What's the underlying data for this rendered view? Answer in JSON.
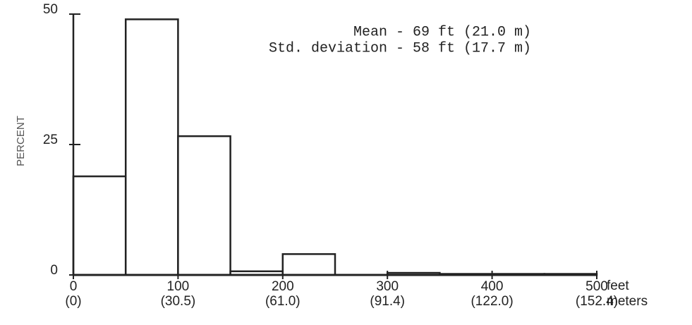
{
  "chart_data": {
    "type": "histogram",
    "bins": [
      0,
      50,
      100,
      150,
      200,
      250,
      300,
      350,
      400,
      450,
      500
    ],
    "values": [
      18.9,
      49,
      26.6,
      0.7,
      4,
      0,
      0.4,
      0.2,
      0.2,
      0.2
    ],
    "color": "#ffffff",
    "edge_color": "#222222",
    "ylabel": "PERCENT",
    "xlim": [
      0,
      500
    ],
    "xticks": [
      0,
      100,
      200,
      300,
      400,
      500
    ],
    "x2_tick_labels": [
      "(0)",
      "(30.5)",
      "(61.0)",
      "(91.4)",
      "(122.0)",
      "(152.4)"
    ],
    "x_unit_label": "feet",
    "x2_unit_label": "meters",
    "ylim": [
      0,
      50
    ],
    "yticks": [
      0,
      25,
      50
    ],
    "annotations": [
      "Mean - 69 ft (21.0 m)",
      "Std. deviation - 58 ft (17.7 m)"
    ],
    "grid": false
  }
}
